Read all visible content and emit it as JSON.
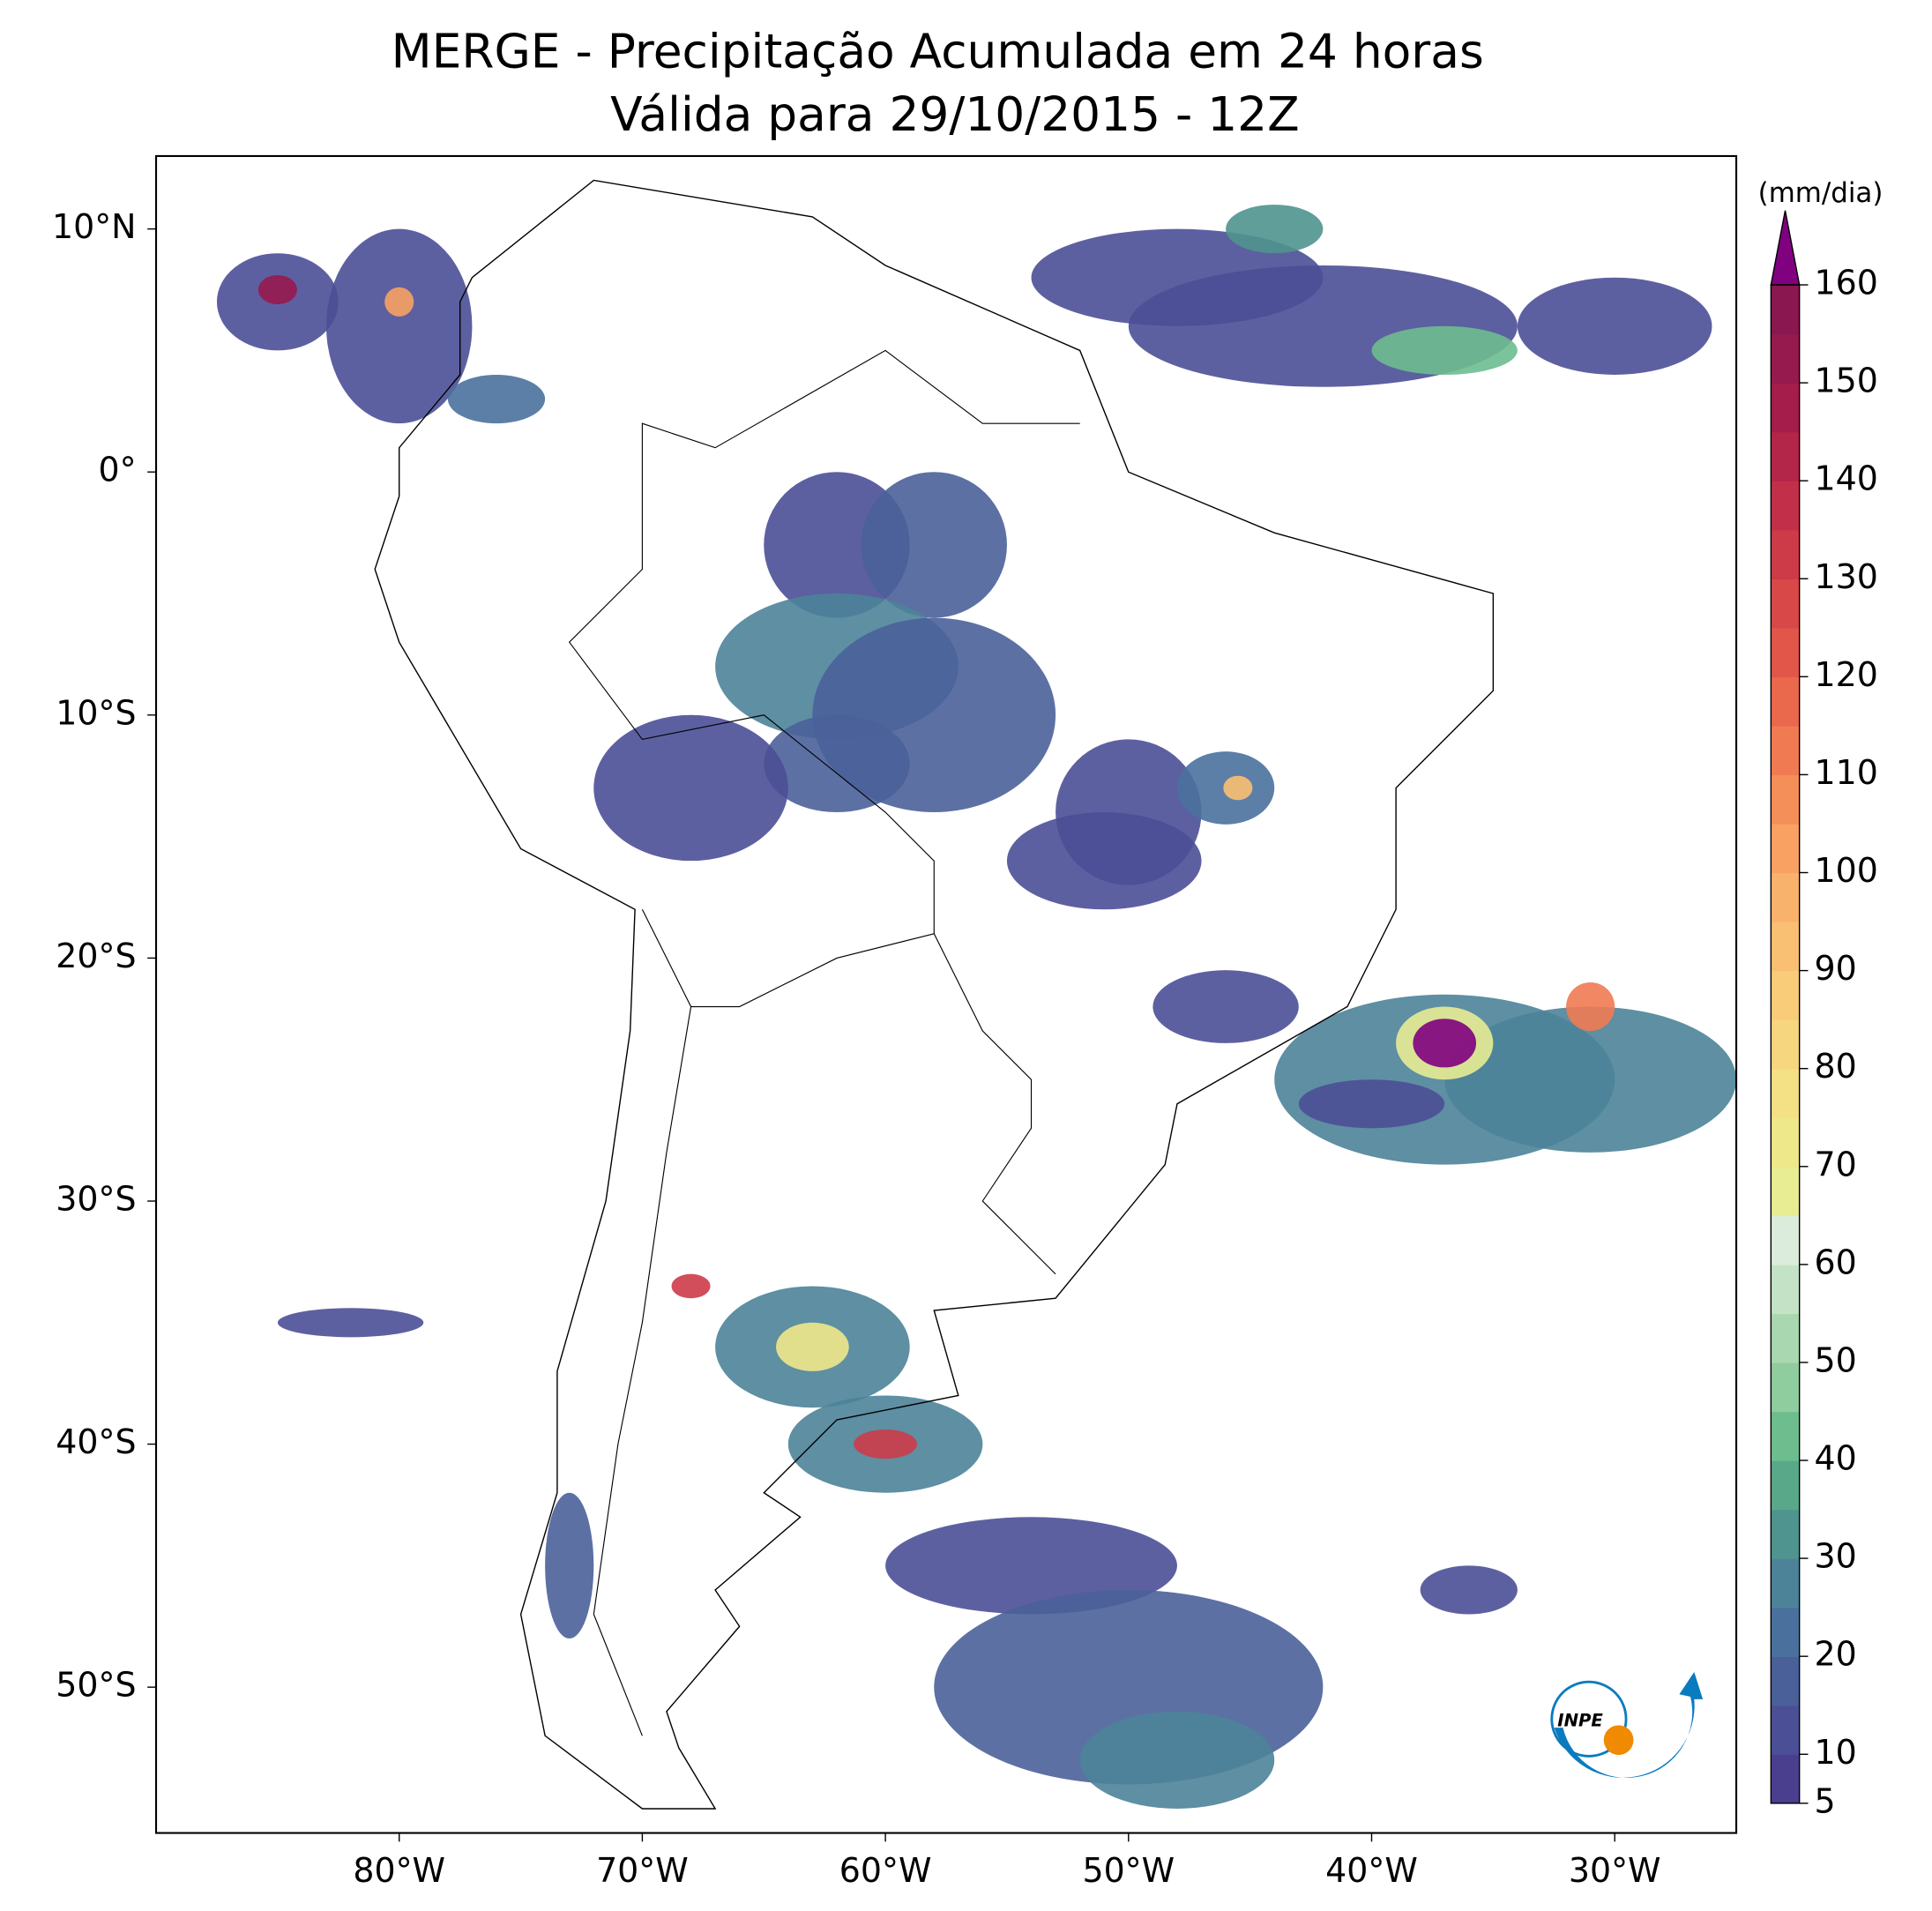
{
  "chart_data": {
    "type": "map",
    "title": "MERGE - Precipitação Acumulada em 24 horas",
    "subtitle": "Válida para 29/10/2015 - 12Z",
    "xlim": [
      -90,
      -25
    ],
    "ylim": [
      -56,
      13
    ],
    "xticks": [
      {
        "value": -80,
        "label": "80°W"
      },
      {
        "value": -70,
        "label": "70°W"
      },
      {
        "value": -60,
        "label": "60°W"
      },
      {
        "value": -50,
        "label": "50°W"
      },
      {
        "value": -40,
        "label": "40°W"
      },
      {
        "value": -30,
        "label": "30°W"
      }
    ],
    "yticks": [
      {
        "value": 10,
        "label": "10°N"
      },
      {
        "value": 0,
        "label": "0°"
      },
      {
        "value": -10,
        "label": "10°S"
      },
      {
        "value": -20,
        "label": "20°S"
      },
      {
        "value": -30,
        "label": "30°S"
      },
      {
        "value": -40,
        "label": "40°S"
      },
      {
        "value": -50,
        "label": "50°S"
      }
    ],
    "colorbar": {
      "label": "(mm/dia)",
      "lim": [
        5,
        160
      ],
      "ticks": [
        5,
        10,
        20,
        30,
        40,
        50,
        60,
        70,
        80,
        90,
        100,
        110,
        120,
        130,
        140,
        150,
        160
      ],
      "colors": [
        "#4a3f8f",
        "#4b4f96",
        "#4a6099",
        "#4a719d",
        "#4c8399",
        "#4f948e",
        "#5aa88a",
        "#6dbd8f",
        "#8fcc9e",
        "#a9d8b0",
        "#c4e3c6",
        "#dcecdc",
        "#e8ec93",
        "#efe88a",
        "#f4e085",
        "#f6d67e",
        "#f8cc78",
        "#f9c073",
        "#f9b26b",
        "#f8a163",
        "#f58f5a",
        "#f07b52",
        "#ea684c",
        "#e25649",
        "#d84848",
        "#cd3b48",
        "#c12f48",
        "#b42649",
        "#a51d4b",
        "#961a4e",
        "#8a1750"
      ],
      "extend_color": "#800080"
    },
    "logo_text": "INPE"
  }
}
